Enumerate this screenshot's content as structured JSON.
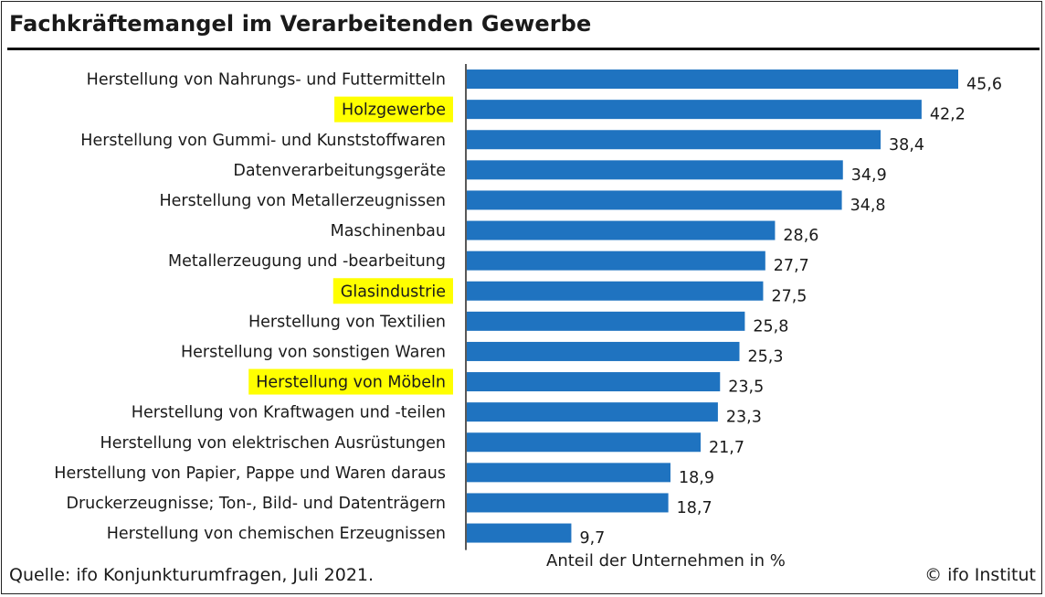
{
  "title": "Fachkräftemangel im Verarbeitenden Gewerbe",
  "source": "Quelle: ifo Konjunkturumfragen, Juli 2021.",
  "copyright": "© ifo Institut",
  "colors": {
    "bar": "#1f73c0",
    "highlight": "#ffff00",
    "text": "#1a1a1a"
  },
  "chart_data": {
    "type": "bar",
    "orientation": "horizontal",
    "xlabel": "Anteil der Unternehmen in %",
    "ylabel": "",
    "xlim": [
      0,
      50
    ],
    "grid": false,
    "legend": "none",
    "categories": [
      "Herstellung von Nahrungs- und Futtermitteln",
      "Holzgewerbe",
      "Herstellung von Gummi- und Kunststoffwaren",
      "Datenverarbeitungsgeräte",
      "Herstellung von Metallerzeugnissen",
      "Maschinenbau",
      "Metallerzeugung und -bearbeitung",
      "Glasindustrie",
      "Herstellung von Textilien",
      "Herstellung von sonstigen Waren",
      "Herstellung von Möbeln",
      "Herstellung von Kraftwagen und -teilen",
      "Herstellung von elektrischen Ausrüstungen",
      "Herstellung von Papier, Pappe und Waren daraus",
      "Druckerzeugnisse; Ton-, Bild- und Datenträgern",
      "Herstellung von chemischen Erzeugnissen"
    ],
    "values": [
      45.6,
      42.2,
      38.4,
      34.9,
      34.8,
      28.6,
      27.7,
      27.5,
      25.8,
      25.3,
      23.5,
      23.3,
      21.7,
      18.9,
      18.7,
      9.7
    ],
    "value_labels": [
      "45,6",
      "42,2",
      "38,4",
      "34,9",
      "34,8",
      "28,6",
      "27,7",
      "27,5",
      "25,8",
      "25,3",
      "23,5",
      "23,3",
      "21,7",
      "18,9",
      "18,7",
      "9,7"
    ],
    "highlighted": [
      "Holzgewerbe",
      "Glasindustrie",
      "Herstellung von Möbeln"
    ]
  }
}
